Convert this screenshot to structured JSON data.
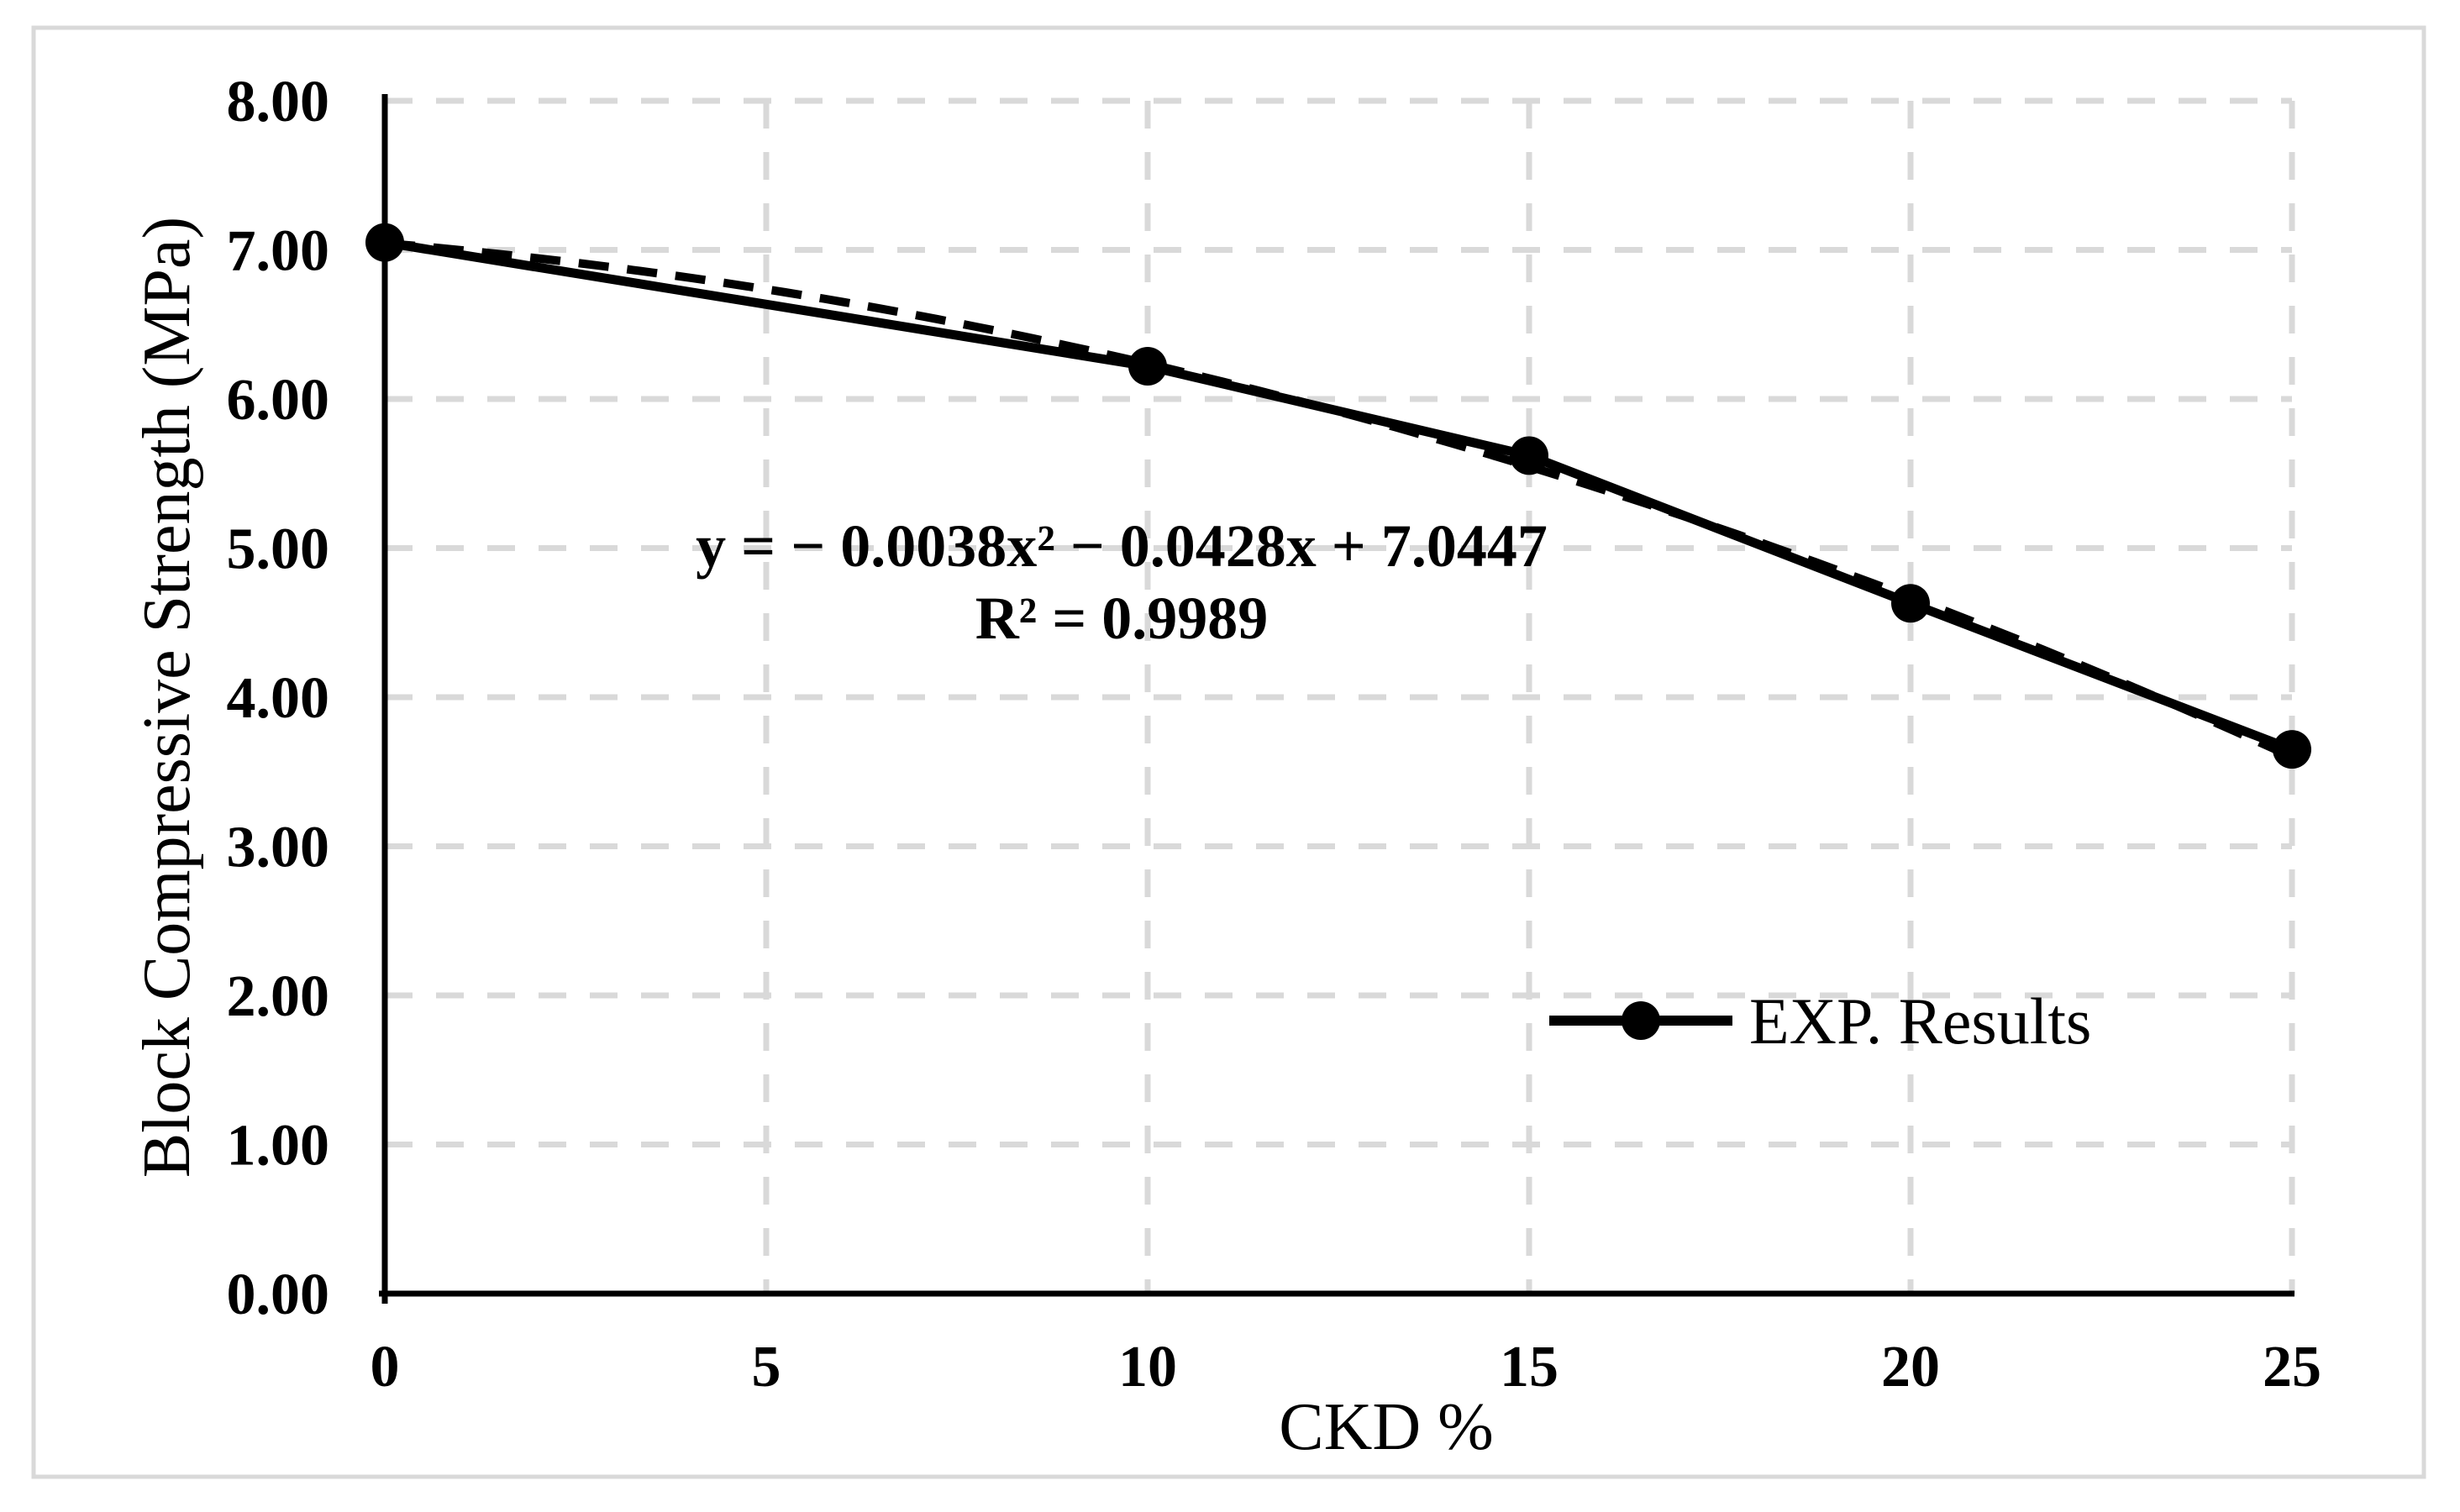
{
  "figure": {
    "background": "#ffffff",
    "border_color": "#d9d9d9"
  },
  "chart_data": {
    "type": "line",
    "title": "",
    "xlabel": "CKD %",
    "ylabel": "Block Compressive Strength (MPa)",
    "xlim": [
      0,
      25
    ],
    "ylim": [
      0,
      8
    ],
    "x_ticks": [
      0,
      5,
      10,
      15,
      20,
      25
    ],
    "x_tick_labels": [
      "0",
      "5",
      "10",
      "15",
      "20",
      "25"
    ],
    "y_ticks": [
      0,
      1,
      2,
      3,
      4,
      5,
      6,
      7,
      8
    ],
    "y_tick_labels": [
      "0.00",
      "1.00",
      "2.00",
      "3.00",
      "4.00",
      "5.00",
      "6.00",
      "7.00",
      "8.00"
    ],
    "grid": "dashed-both-directions",
    "colors": {
      "ink": "#000000",
      "gridline": "#d9d9d9"
    },
    "series": [
      {
        "name": "EXP. Results",
        "type": "line-with-markers",
        "marker": "filled-circle",
        "x": [
          0,
          10,
          15,
          20,
          25
        ],
        "y": [
          7.05,
          6.22,
          5.62,
          4.63,
          3.65
        ]
      }
    ],
    "trendline": {
      "type": "polynomial",
      "order": 2,
      "coefficients": {
        "a": -0.0038,
        "b": -0.0428,
        "c": 7.0447
      },
      "style": "dashed",
      "equation_label": "y = − 0.0038x² − 0.0428x + 7.0447",
      "r_squared_label": "R² = 0.9989"
    },
    "legend": {
      "position": "inside-right-middle",
      "entries": [
        "EXP. Results"
      ]
    }
  }
}
